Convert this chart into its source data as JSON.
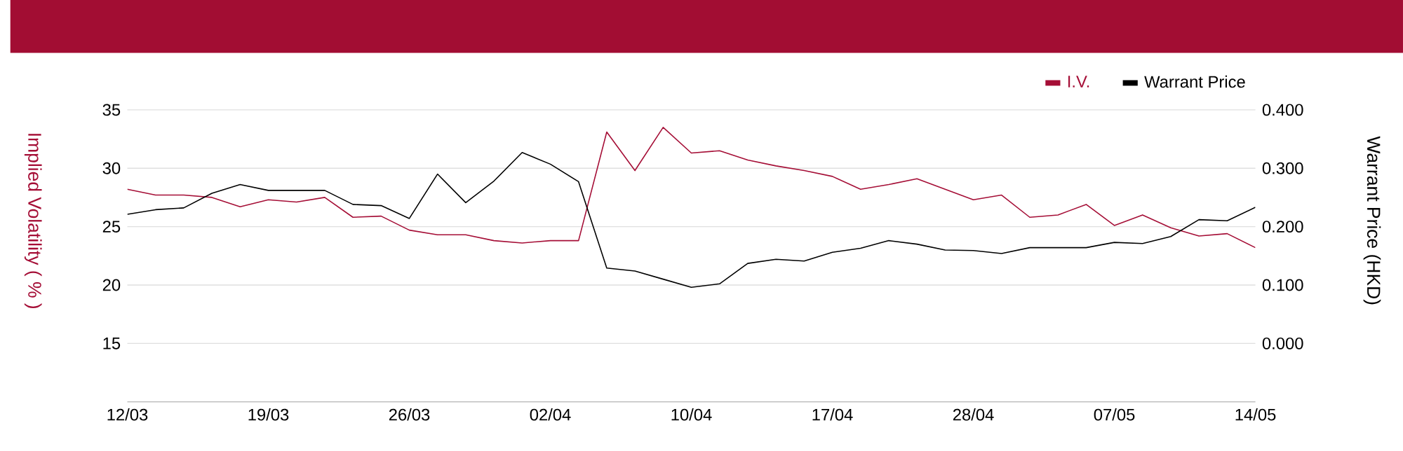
{
  "chart_data": {
    "type": "line",
    "categories": [
      "12/03",
      null,
      null,
      null,
      null,
      "19/03",
      null,
      null,
      null,
      null,
      "26/03",
      null,
      null,
      null,
      null,
      "02/04",
      null,
      null,
      null,
      null,
      "10/04",
      null,
      null,
      null,
      null,
      "17/04",
      null,
      null,
      null,
      null,
      "28/04",
      null,
      null,
      null,
      null,
      "07/05",
      null,
      null,
      null,
      null,
      "14/05"
    ],
    "series": [
      {
        "name": "I.V.",
        "color": "#a50e36",
        "values": [
          28.2,
          27.7,
          27.7,
          27.5,
          26.7,
          27.3,
          27.1,
          27.5,
          25.8,
          25.9,
          24.7,
          24.3,
          24.3,
          23.8,
          23.6,
          23.8,
          23.8,
          33.1,
          29.8,
          33.5,
          31.3,
          31.5,
          30.7,
          30.2,
          29.8,
          29.3,
          28.2,
          28.6,
          29.1,
          28.2,
          27.3,
          27.7,
          25.8,
          26.0,
          26.9,
          25.1,
          26.0,
          24.9,
          24.2,
          24.4,
          23.2
        ]
      },
      {
        "name": "Warrant Price",
        "color": "#000000",
        "axis": "y2",
        "values": [
          0.221,
          0.229,
          0.232,
          0.257,
          0.272,
          0.262,
          0.262,
          0.262,
          0.238,
          0.236,
          0.214,
          0.29,
          0.241,
          0.278,
          0.327,
          0.307,
          0.277,
          0.129,
          0.124,
          0.11,
          0.096,
          0.102,
          0.137,
          0.144,
          0.141,
          0.156,
          0.163,
          0.176,
          0.17,
          0.16,
          0.159,
          0.154,
          0.164,
          0.164,
          0.164,
          0.173,
          0.171,
          0.183,
          0.212,
          0.21,
          0.233
        ]
      }
    ],
    "ylabel": "Implied Volatility ( % )",
    "y2label": "Warrant Price (HKD)",
    "ylim": [
      10,
      35
    ],
    "yticks": [
      15,
      20,
      25,
      30,
      35
    ],
    "y2lim": [
      -0.1,
      0.4
    ],
    "y2ticks": [
      {
        "value": 0,
        "label": "0.000"
      },
      {
        "value": 0.1,
        "label": "0.100"
      },
      {
        "value": 0.2,
        "label": "0.200"
      },
      {
        "value": 0.3,
        "label": "0.300"
      },
      {
        "value": 0.4,
        "label": "0.400"
      }
    ],
    "grid": "y",
    "legend": "top right",
    "marker": "none",
    "line_style": "solid"
  }
}
